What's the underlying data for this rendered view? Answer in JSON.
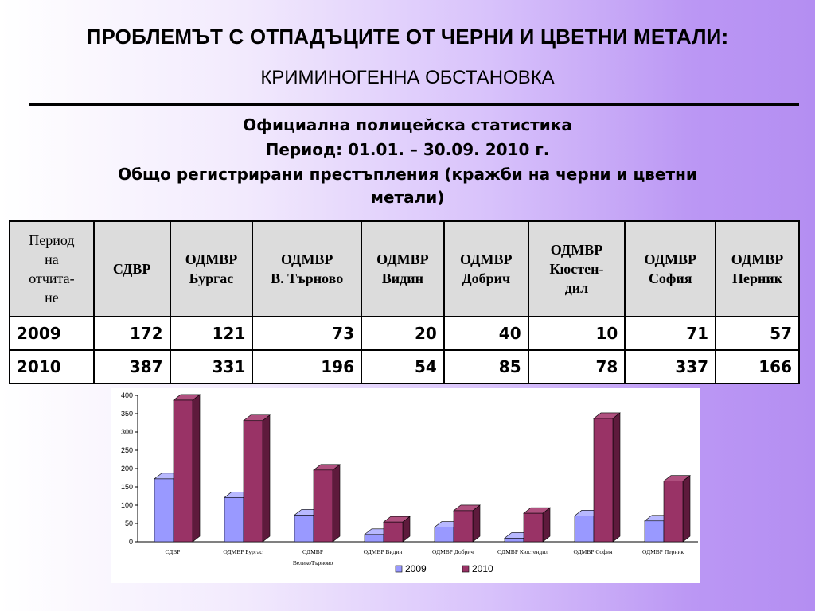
{
  "page": {
    "title": "ПРОБЛЕМЪТ С ОТПАДЪЦИТЕ ОТ ЧЕРНИ И ЦВЕТНИ МЕТАЛИ:",
    "subtitle": "КРИМИНОГЕННА ОБСТАНОВКА",
    "stats_lines": [
      "Официална полицейска статистика",
      "Период: 01.01. – 30.09. 2010 г.",
      "Общо регистрирани престъпления (кражби на черни и цветни",
      "метали)"
    ]
  },
  "table": {
    "headers": [
      [
        "Период",
        "на",
        "отчита-",
        "не"
      ],
      [
        "СДВР"
      ],
      [
        "ОДМВР",
        "Бургас"
      ],
      [
        "ОДМВР",
        "В. Търново"
      ],
      [
        "ОДМВР",
        "Видин"
      ],
      [
        "ОДМВР",
        "Добрич"
      ],
      [
        "ОДМВР",
        "Кюстен-",
        "дил"
      ],
      [
        "ОДМВР",
        "София"
      ],
      [
        "ОДМВР",
        "Перник"
      ]
    ],
    "rows": [
      [
        "2009",
        "172",
        "121",
        "73",
        "20",
        "40",
        "10",
        "71",
        "57"
      ],
      [
        "2010",
        "387",
        "331",
        "196",
        "54",
        "85",
        "78",
        "337",
        "166"
      ]
    ]
  },
  "chart_data": {
    "type": "bar",
    "categories": [
      "СДВР",
      "ОДМВР Бургас",
      "ОДМВР ВеликоТърново",
      "ОДМВР Видин",
      "ОДМВР Добрич",
      "ОДМВР Кюстендил",
      "ОДМВР София",
      "ОДМВР Перник"
    ],
    "category_label_lines": [
      [
        "СДВР"
      ],
      [
        "ОДМВР Бургас"
      ],
      [
        "ОДМВР",
        "ВеликоТърново"
      ],
      [
        "ОДМВР Видин"
      ],
      [
        "ОДМВР Добрич"
      ],
      [
        "ОДМВР Кюстендил"
      ],
      [
        "ОДМВР София"
      ],
      [
        "ОДМВР Перник"
      ]
    ],
    "series": [
      {
        "name": "2009",
        "values": [
          172,
          121,
          73,
          20,
          40,
          10,
          71,
          57
        ],
        "color": "#9999ff",
        "side_color": "#6f6fc0",
        "top_color": "#b8b8ff"
      },
      {
        "name": "2010",
        "values": [
          387,
          331,
          196,
          54,
          85,
          78,
          337,
          166
        ],
        "color": "#993366",
        "side_color": "#5e1a3c",
        "top_color": "#b0507f"
      }
    ],
    "ylim": [
      0,
      400
    ],
    "yticks": [
      0,
      50,
      100,
      150,
      200,
      250,
      300,
      350,
      400
    ],
    "legend_position": "bottom",
    "grid": false
  }
}
